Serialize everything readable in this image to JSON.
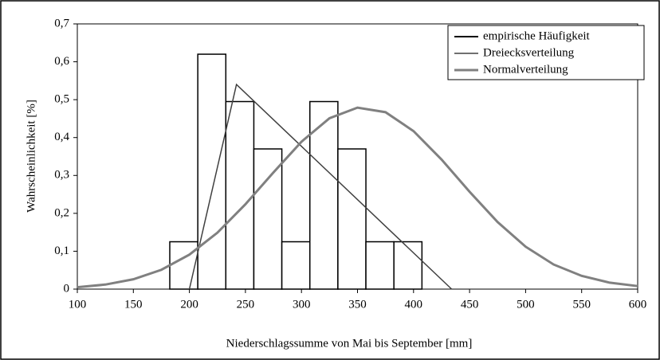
{
  "chart_data": {
    "type": "combo",
    "xlabel": "Niederschlagssumme von Mai bis September [mm]",
    "ylabel": "Wahrscheinlichkeit [%]",
    "xlim": [
      100,
      600
    ],
    "xticks": [
      100,
      150,
      200,
      250,
      300,
      350,
      400,
      450,
      500,
      550,
      600
    ],
    "ylim": [
      0,
      0.7
    ],
    "yticks": [
      0,
      {
        "value": 0.1,
        "label": "0,1"
      },
      {
        "value": 0.2,
        "label": "0,2"
      },
      {
        "value": 0.3,
        "label": "0,3"
      },
      {
        "value": 0.4,
        "label": "0,4"
      },
      {
        "value": 0.5,
        "label": "0,5"
      },
      {
        "value": 0.6,
        "label": "0,6"
      },
      {
        "value": 0.7,
        "label": "0,7"
      }
    ],
    "legend": "top-right",
    "histogram": {
      "name": "empirische Häufigkeit",
      "color": "#000000",
      "bins": [
        182.5,
        207.5,
        232.5,
        257.5,
        282.5,
        307.5,
        332.5,
        357.5,
        382.5,
        407.5
      ],
      "values": [
        0.125,
        0.62,
        0.495,
        0.37,
        0.125,
        0.495,
        0.37,
        0.125,
        0.125
      ]
    },
    "series": [
      {
        "name": "Dreiecksverteilung",
        "color": "#404040",
        "width": 1.5,
        "x": [
          200,
          242,
          434
        ],
        "values": [
          0,
          0.54,
          0
        ]
      },
      {
        "name": "Normalverteilung",
        "color": "#808080",
        "width": 3,
        "x": [
          100,
          125,
          150,
          175,
          200,
          225,
          250,
          275,
          300,
          325,
          350,
          375,
          400,
          425,
          450,
          475,
          500,
          525,
          550,
          575,
          600
        ],
        "values": [
          0.005,
          0.012,
          0.026,
          0.051,
          0.091,
          0.149,
          0.224,
          0.308,
          0.389,
          0.451,
          0.479,
          0.467,
          0.417,
          0.342,
          0.257,
          0.177,
          0.112,
          0.065,
          0.035,
          0.017,
          0.008
        ]
      }
    ]
  }
}
